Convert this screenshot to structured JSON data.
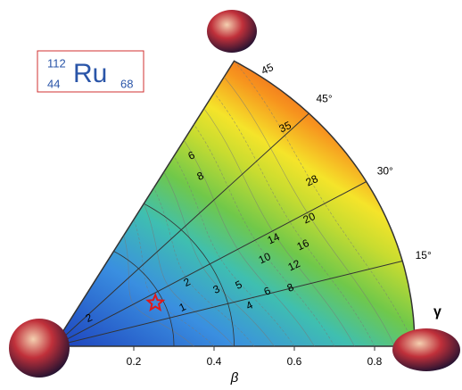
{
  "chart_data": {
    "type": "polar-contour",
    "nucleus": {
      "mass": 112,
      "Z": 44,
      "symbol": "Ru",
      "N": 68
    },
    "xlabel": "β",
    "gamma_label": "γ",
    "xlim": [
      0,
      0.9
    ],
    "xticks": [
      0.2,
      0.4,
      0.6,
      0.8
    ],
    "gamma_lim": [
      0,
      60
    ],
    "gamma_ticks": [
      {
        "value": 15,
        "label": "15°"
      },
      {
        "value": 30,
        "label": "30°"
      },
      {
        "value": 45,
        "label": "45°"
      }
    ],
    "contour_levels": [
      45,
      35,
      28,
      20,
      16,
      14,
      12,
      10,
      8,
      6,
      5,
      4,
      3,
      2,
      1,
      2,
      6,
      8
    ],
    "minimum": {
      "beta": 0.28,
      "gamma": 25
    }
  }
}
